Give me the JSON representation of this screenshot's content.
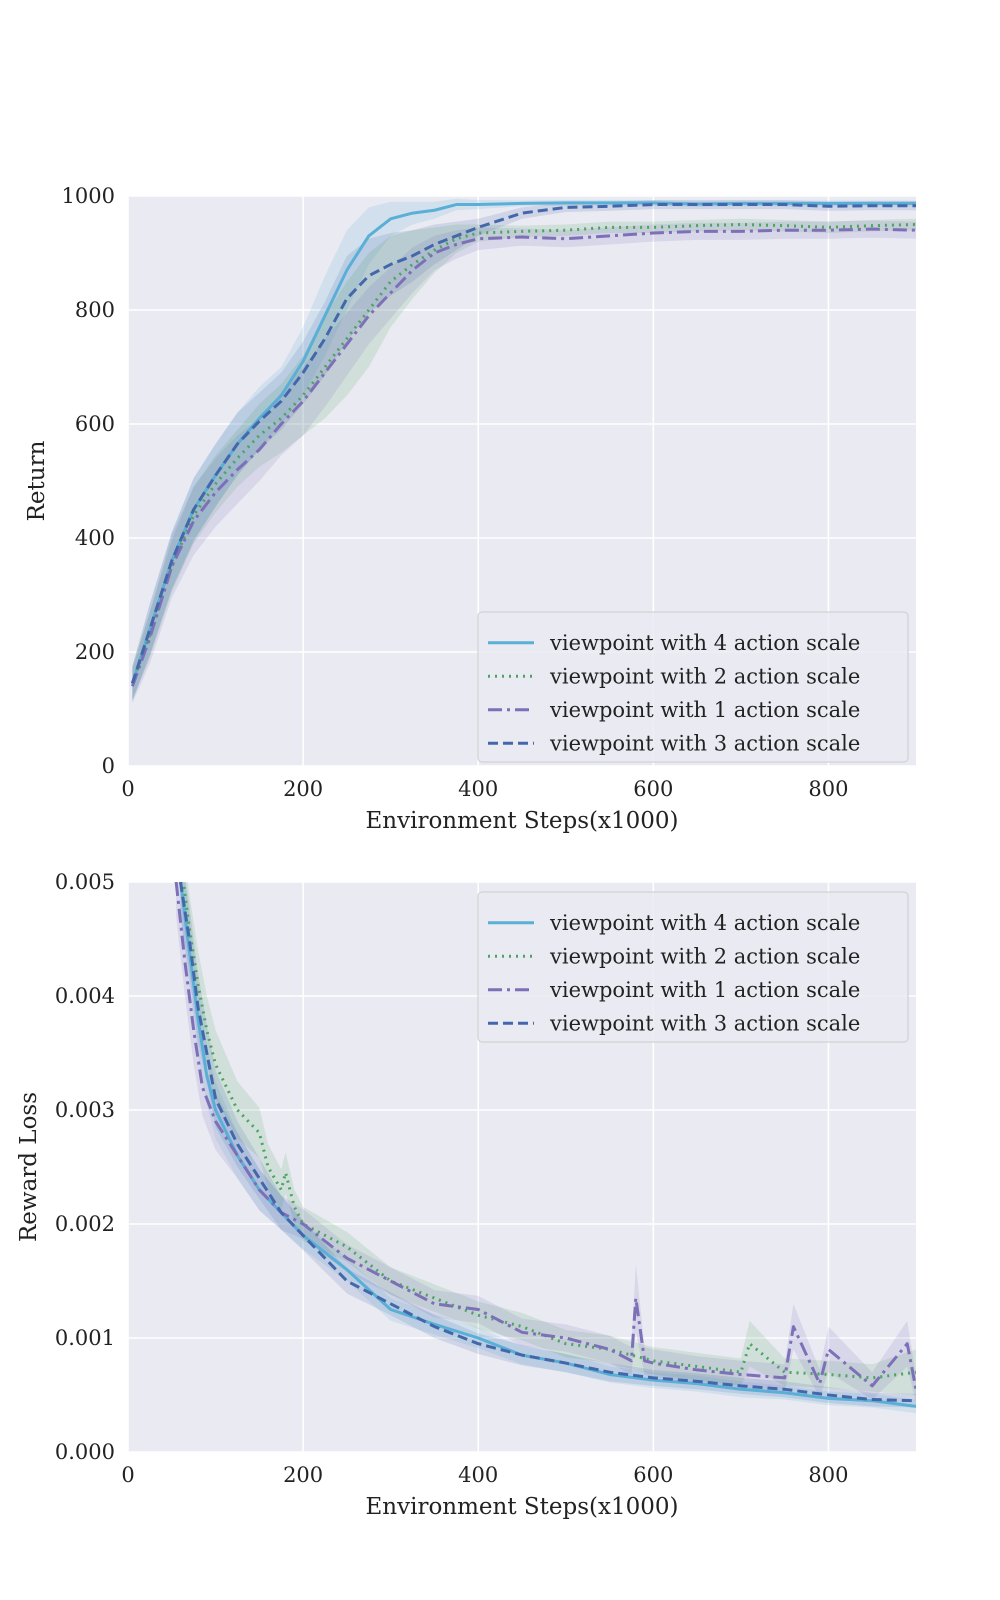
{
  "colors": {
    "s4": "#5aafd6",
    "s2": "#4aa55f",
    "s1": "#7d6fb8",
    "s3": "#4367ab",
    "plot_background": "#eaeaf2",
    "grid": "#ffffff"
  },
  "chart_data": [
    {
      "type": "line",
      "xlabel": "Environment Steps(x1000)",
      "ylabel": "Return",
      "xlim": [
        0,
        900
      ],
      "ylim": [
        0,
        1000
      ],
      "xticks": [
        "0",
        "200",
        "400",
        "600",
        "800"
      ],
      "yticks": [
        "0",
        "200",
        "400",
        "600",
        "800",
        "1000"
      ],
      "grid": true,
      "legend_position": "lower-right",
      "series": [
        {
          "name": "viewpoint with 4 action scale",
          "key": "s4",
          "style": "solid",
          "x": [
            5,
            25,
            50,
            75,
            100,
            125,
            150,
            175,
            200,
            225,
            250,
            275,
            300,
            325,
            350,
            375,
            400,
            450,
            500,
            550,
            600,
            650,
            700,
            750,
            800,
            850,
            900
          ],
          "y": [
            145,
            240,
            360,
            450,
            510,
            565,
            610,
            650,
            710,
            790,
            870,
            930,
            960,
            970,
            975,
            985,
            985,
            987,
            988,
            988,
            988,
            986,
            987,
            987,
            987,
            987,
            987
          ],
          "band": [
            30,
            45,
            50,
            55,
            55,
            55,
            55,
            50,
            60,
            70,
            70,
            50,
            30,
            20,
            15,
            10,
            8,
            5,
            5,
            5,
            5,
            5,
            5,
            5,
            5,
            5,
            5
          ]
        },
        {
          "name": "viewpoint with 2 action scale",
          "key": "s2",
          "style": "dotted",
          "x": [
            5,
            25,
            50,
            75,
            100,
            125,
            150,
            175,
            200,
            225,
            250,
            275,
            300,
            325,
            350,
            375,
            400,
            450,
            500,
            550,
            600,
            650,
            700,
            750,
            800,
            850,
            900
          ],
          "y": [
            145,
            230,
            350,
            440,
            495,
            540,
            580,
            610,
            650,
            700,
            750,
            800,
            850,
            880,
            905,
            925,
            935,
            938,
            940,
            945,
            945,
            948,
            950,
            948,
            945,
            948,
            950
          ],
          "band": [
            30,
            40,
            45,
            50,
            50,
            50,
            55,
            60,
            70,
            90,
            100,
            100,
            80,
            60,
            40,
            25,
            15,
            10,
            10,
            10,
            10,
            10,
            10,
            10,
            10,
            10,
            10
          ]
        },
        {
          "name": "viewpoint with 1 action scale",
          "key": "s1",
          "style": "dashdot",
          "x": [
            5,
            25,
            50,
            75,
            100,
            125,
            150,
            175,
            200,
            225,
            250,
            275,
            300,
            325,
            350,
            375,
            400,
            450,
            500,
            550,
            600,
            650,
            700,
            750,
            800,
            850,
            900
          ],
          "y": [
            140,
            225,
            350,
            430,
            480,
            520,
            555,
            600,
            640,
            690,
            740,
            790,
            830,
            870,
            900,
            915,
            925,
            928,
            925,
            930,
            935,
            938,
            938,
            940,
            940,
            942,
            940
          ],
          "band": [
            30,
            45,
            55,
            60,
            60,
            60,
            55,
            55,
            60,
            60,
            55,
            50,
            45,
            40,
            30,
            25,
            20,
            15,
            15,
            15,
            15,
            15,
            15,
            15,
            15,
            15,
            15
          ]
        },
        {
          "name": "viewpoint with 3 action scale",
          "key": "s3",
          "style": "dashed",
          "x": [
            5,
            25,
            50,
            75,
            100,
            125,
            150,
            175,
            200,
            225,
            250,
            275,
            300,
            325,
            350,
            375,
            400,
            450,
            500,
            550,
            600,
            650,
            700,
            750,
            800,
            850,
            900
          ],
          "y": [
            145,
            240,
            360,
            450,
            510,
            565,
            605,
            640,
            690,
            750,
            820,
            860,
            880,
            895,
            915,
            930,
            945,
            970,
            980,
            982,
            985,
            985,
            985,
            985,
            982,
            983,
            983
          ],
          "band": [
            30,
            45,
            50,
            55,
            55,
            55,
            50,
            50,
            55,
            65,
            75,
            65,
            55,
            45,
            35,
            25,
            15,
            10,
            8,
            8,
            8,
            8,
            8,
            8,
            8,
            8,
            8
          ]
        }
      ]
    },
    {
      "type": "line",
      "xlabel": "Environment Steps(x1000)",
      "ylabel": "Reward Loss",
      "xlim": [
        0,
        900
      ],
      "ylim": [
        0,
        0.005
      ],
      "xticks": [
        "0",
        "200",
        "400",
        "600",
        "800"
      ],
      "yticks": [
        "0.000",
        "0.001",
        "0.002",
        "0.003",
        "0.004",
        "0.005"
      ],
      "grid": true,
      "legend_position": "upper-right",
      "series": [
        {
          "name": "viewpoint with 4 action scale",
          "key": "s4",
          "style": "solid",
          "x": [
            60,
            70,
            80,
            90,
            100,
            125,
            150,
            175,
            200,
            250,
            300,
            350,
            400,
            450,
            500,
            550,
            600,
            650,
            700,
            750,
            800,
            850,
            900
          ],
          "y": [
            0.005,
            0.0044,
            0.0038,
            0.0033,
            0.003,
            0.0026,
            0.0023,
            0.0021,
            0.0019,
            0.0016,
            0.00125,
            0.00112,
            0.001,
            0.00085,
            0.00078,
            0.00068,
            0.00063,
            0.0006,
            0.00055,
            0.00052,
            0.00047,
            0.00045,
            0.0004
          ],
          "band": [
            0.0003,
            0.0003,
            0.0003,
            0.00025,
            0.00025,
            0.0002,
            0.00018,
            0.00015,
            0.00012,
            0.0001,
            0.0001,
            9e-05,
            9e-05,
            8e-05,
            8e-05,
            7e-05,
            7e-05,
            7e-05,
            7e-05,
            6e-05,
            6e-05,
            6e-05,
            6e-05
          ]
        },
        {
          "name": "viewpoint with 2 action scale",
          "key": "s2",
          "style": "dotted",
          "x": [
            60,
            70,
            80,
            90,
            100,
            125,
            150,
            160,
            175,
            180,
            190,
            200,
            250,
            300,
            350,
            400,
            450,
            500,
            550,
            600,
            650,
            700,
            710,
            750,
            800,
            850,
            900
          ],
          "y": [
            0.0052,
            0.0046,
            0.0041,
            0.0037,
            0.0034,
            0.003,
            0.0028,
            0.0025,
            0.0023,
            0.00245,
            0.00215,
            0.002,
            0.0018,
            0.0015,
            0.00135,
            0.0012,
            0.0011,
            0.00095,
            0.0009,
            0.0008,
            0.00075,
            0.0007,
            0.00095,
            0.0007,
            0.00068,
            0.00065,
            0.0007
          ],
          "band": [
            0.0003,
            0.0003,
            0.0003,
            0.0003,
            0.0003,
            0.00025,
            0.00022,
            0.0002,
            0.00018,
            0.00018,
            0.00015,
            0.00015,
            0.00013,
            0.00012,
            0.00012,
            0.00012,
            0.00012,
            0.00012,
            0.00012,
            0.00012,
            0.00012,
            0.00012,
            0.0002,
            0.00012,
            0.00012,
            0.00012,
            0.0002
          ]
        },
        {
          "name": "viewpoint with 1 action scale",
          "key": "s1",
          "style": "dashdot",
          "x": [
            55,
            65,
            75,
            85,
            100,
            125,
            150,
            175,
            200,
            250,
            300,
            350,
            400,
            450,
            500,
            550,
            575,
            580,
            590,
            600,
            650,
            700,
            750,
            760,
            790,
            800,
            850,
            890,
            900
          ],
          "y": [
            0.005,
            0.0043,
            0.0037,
            0.0032,
            0.0029,
            0.0026,
            0.0023,
            0.0021,
            0.002,
            0.0017,
            0.0015,
            0.0013,
            0.00125,
            0.00105,
            0.001,
            0.0009,
            0.0008,
            0.00135,
            0.0008,
            0.00078,
            0.00072,
            0.00068,
            0.00065,
            0.0011,
            0.0006,
            0.0009,
            0.00058,
            0.00095,
            0.00055
          ],
          "band": [
            0.0003,
            0.0003,
            0.0003,
            0.00025,
            0.00025,
            0.0002,
            0.00018,
            0.00015,
            0.00013,
            0.00012,
            0.00012,
            0.00012,
            0.00012,
            0.00012,
            0.00012,
            0.00012,
            0.00012,
            0.0003,
            0.00012,
            0.00012,
            0.00012,
            0.00012,
            0.00012,
            0.0002,
            0.00012,
            0.0002,
            0.00012,
            0.0002,
            0.00012
          ]
        },
        {
          "name": "viewpoint with 3 action scale",
          "key": "s3",
          "style": "dashed",
          "x": [
            60,
            70,
            80,
            90,
            100,
            125,
            150,
            175,
            200,
            250,
            300,
            350,
            400,
            450,
            500,
            550,
            600,
            650,
            700,
            750,
            800,
            850,
            900
          ],
          "y": [
            0.005,
            0.0045,
            0.0039,
            0.0035,
            0.0031,
            0.0027,
            0.0024,
            0.0021,
            0.0019,
            0.0015,
            0.0013,
            0.0011,
            0.00095,
            0.00085,
            0.00078,
            0.0007,
            0.00065,
            0.00062,
            0.00058,
            0.00055,
            0.0005,
            0.00046,
            0.00045
          ],
          "band": [
            0.0003,
            0.0003,
            0.0003,
            0.00025,
            0.00025,
            0.0002,
            0.00018,
            0.00015,
            0.00013,
            0.00011,
            0.0001,
            0.0001,
            9e-05,
            9e-05,
            8e-05,
            8e-05,
            7e-05,
            7e-05,
            7e-05,
            7e-05,
            7e-05,
            6e-05,
            6e-05
          ]
        }
      ]
    }
  ]
}
